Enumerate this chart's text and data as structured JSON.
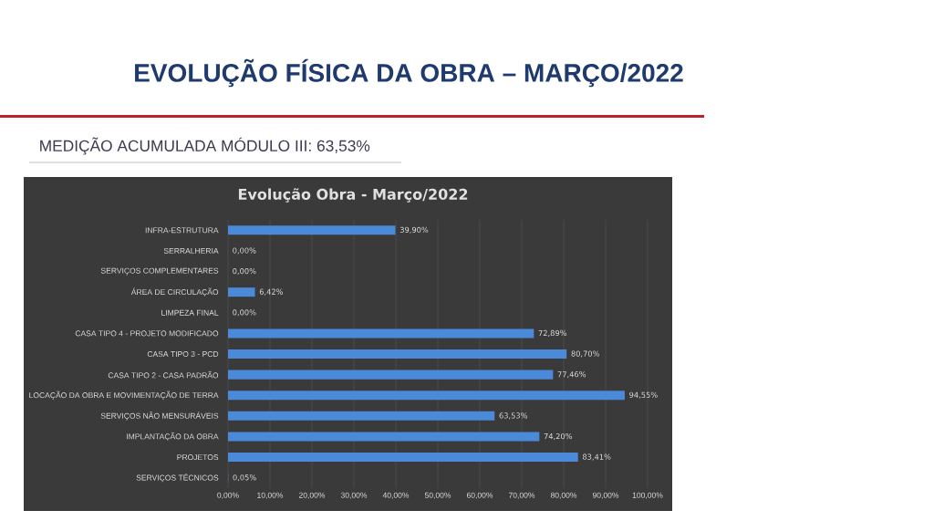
{
  "chart_data": {
    "type": "bar",
    "orientation": "horizontal",
    "title": "EVOLUÇÃO FÍSICA DA OBRA – MARÇO/2022",
    "subtitle": "MEDIÇÃO ACUMULADA MÓDULO III: 63,53%",
    "annotations": [
      "Evolução Obra - Março/2022"
    ],
    "categories": [
      "INFRA-ESTRUTURA",
      "SERRALHERIA",
      "SERVIÇOS COMPLEMENTARES",
      "ÁREA DE CIRCULAÇÃO",
      "LIMPEZA FINAL",
      "CASA TIPO 4 - PROJETO MODIFICADO",
      "CASA TIPO 3 - PCD",
      "CASA TIPO 2 - CASA PADRÃO",
      "LOCAÇÃO DA OBRA E MOVIMENTAÇÃO DE TERRA",
      "SERVIÇOS NÃO MENSURÁVEIS",
      "IMPLANTAÇÃO DA OBRA",
      "PROJETOS",
      "SERVIÇOS TÉCNICOS"
    ],
    "values": [
      39.9,
      0.0,
      0.0,
      6.42,
      0.0,
      72.89,
      80.7,
      77.46,
      94.55,
      63.53,
      74.2,
      83.41,
      0.05
    ],
    "value_labels": [
      "39,90%",
      "0,00%",
      "0,00%",
      "6,42%",
      "0,00%",
      "72,89%",
      "80,70%",
      "77,46%",
      "94,55%",
      "63,53%",
      "74,20%",
      "83,41%",
      "0,05%"
    ],
    "color": "#4a8ad8",
    "xlim": [
      0,
      100
    ],
    "xticks": [
      {
        "value": 0,
        "label": "0,00%"
      },
      {
        "value": 10,
        "label": "10,00%"
      },
      {
        "value": 20,
        "label": "20,00%"
      },
      {
        "value": 30,
        "label": "30,00%"
      },
      {
        "value": 40,
        "label": "40,00%"
      },
      {
        "value": 50,
        "label": "50,00%"
      },
      {
        "value": 60,
        "label": "60,00%"
      },
      {
        "value": 70,
        "label": "70,00%"
      },
      {
        "value": 80,
        "label": "80,00%"
      },
      {
        "value": 90,
        "label": "90,00%"
      },
      {
        "value": 100,
        "label": "100,00%"
      }
    ],
    "grid": "x"
  }
}
